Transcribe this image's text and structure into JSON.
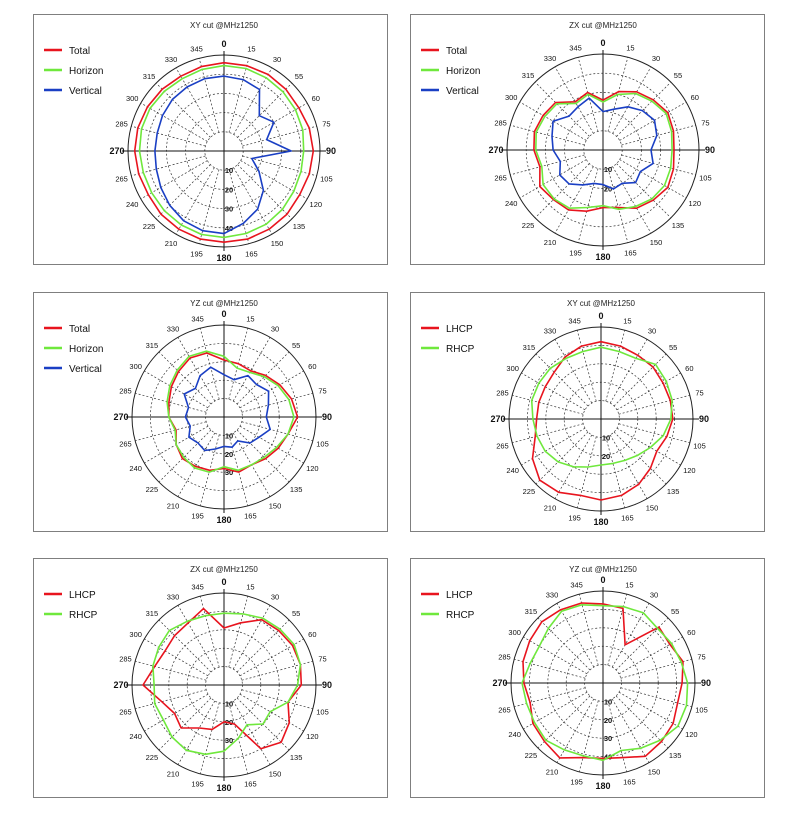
{
  "chart_data": [
    {
      "type": "polar",
      "title": "XY cut @MHz1250",
      "angle_ticks": [
        "0",
        "15",
        "30",
        "55",
        "60",
        "75",
        "90",
        "105",
        "120",
        "135",
        "150",
        "165",
        "180",
        "195",
        "210",
        "225",
        "240",
        "265",
        "270",
        "285",
        "300",
        "315",
        "330",
        "345"
      ],
      "radial_ticks": [
        "10",
        "20",
        "30",
        "40"
      ],
      "series": [
        {
          "name": "Total",
          "color": "#e8141e",
          "values": [
            0.92,
            0.92,
            0.92,
            0.91,
            0.9,
            0.92,
            0.93,
            0.92,
            0.91,
            0.93,
            0.94,
            0.95,
            0.95,
            0.95,
            0.94,
            0.93,
            0.91,
            0.92,
            0.93,
            0.93,
            0.92,
            0.91,
            0.9,
            0.91
          ]
        },
        {
          "name": "Horizon",
          "color": "#6fe83c",
          "values": [
            0.89,
            0.89,
            0.88,
            0.87,
            0.86,
            0.85,
            0.83,
            0.83,
            0.84,
            0.86,
            0.88,
            0.89,
            0.9,
            0.9,
            0.89,
            0.88,
            0.87,
            0.87,
            0.88,
            0.89,
            0.89,
            0.88,
            0.87,
            0.88
          ]
        },
        {
          "name": "Vertical",
          "color": "#1a3fc4",
          "values": [
            0.78,
            0.77,
            0.74,
            0.52,
            0.6,
            0.46,
            0.7,
            0.3,
            0.42,
            0.58,
            0.7,
            0.78,
            0.86,
            0.86,
            0.84,
            0.8,
            0.76,
            0.73,
            0.72,
            0.72,
            0.74,
            0.76,
            0.77,
            0.78
          ]
        }
      ]
    },
    {
      "type": "polar",
      "title": "ZX cut @MHz1250",
      "angle_ticks": [
        "0",
        "15",
        "30",
        "55",
        "60",
        "75",
        "90",
        "105",
        "120",
        "135",
        "150",
        "165",
        "180",
        "195",
        "210",
        "225",
        "240",
        "265",
        "270",
        "285",
        "300",
        "315",
        "330",
        "345"
      ],
      "radial_ticks": [
        "10",
        "20"
      ],
      "series": [
        {
          "name": "Total",
          "color": "#e8141e",
          "values": [
            0.52,
            0.63,
            0.7,
            0.74,
            0.78,
            0.76,
            0.74,
            0.76,
            0.78,
            0.74,
            0.7,
            0.62,
            0.6,
            0.66,
            0.72,
            0.73,
            0.76,
            0.68,
            0.72,
            0.74,
            0.72,
            0.7,
            0.58,
            0.62
          ]
        },
        {
          "name": "Horizon",
          "color": "#6fe83c",
          "values": [
            0.5,
            0.6,
            0.68,
            0.72,
            0.76,
            0.74,
            0.72,
            0.73,
            0.74,
            0.72,
            0.68,
            0.64,
            0.58,
            0.62,
            0.7,
            0.72,
            0.72,
            0.66,
            0.7,
            0.72,
            0.7,
            0.68,
            0.56,
            0.6
          ]
        },
        {
          "name": "Vertical",
          "color": "#1a3fc4",
          "values": [
            0.4,
            0.44,
            0.52,
            0.58,
            0.62,
            0.58,
            0.5,
            0.54,
            0.45,
            0.48,
            0.4,
            0.42,
            0.36,
            0.36,
            0.42,
            0.5,
            0.52,
            0.46,
            0.52,
            0.55,
            0.6,
            0.5,
            0.52,
            0.56
          ]
        }
      ]
    },
    {
      "type": "polar",
      "title": "YZ cut @MHz1250",
      "angle_ticks": [
        "0",
        "15",
        "30",
        "55",
        "60",
        "75",
        "90",
        "105",
        "120",
        "135",
        "150",
        "165",
        "180",
        "195",
        "210",
        "225",
        "240",
        "265",
        "270",
        "285",
        "300",
        "315",
        "330",
        "345"
      ],
      "radial_ticks": [
        "10",
        "20",
        "30"
      ],
      "series": [
        {
          "name": "Total",
          "color": "#e8141e",
          "values": [
            0.62,
            0.6,
            0.58,
            0.64,
            0.7,
            0.76,
            0.8,
            0.72,
            0.68,
            0.64,
            0.6,
            0.62,
            0.56,
            0.6,
            0.62,
            0.64,
            0.6,
            0.54,
            0.6,
            0.62,
            0.66,
            0.7,
            0.74,
            0.72
          ]
        },
        {
          "name": "Horizon",
          "color": "#6fe83c",
          "values": [
            0.66,
            0.55,
            0.56,
            0.62,
            0.68,
            0.73,
            0.76,
            0.72,
            0.66,
            0.62,
            0.6,
            0.6,
            0.54,
            0.62,
            0.64,
            0.62,
            0.6,
            0.55,
            0.6,
            0.64,
            0.68,
            0.72,
            0.76,
            0.74
          ]
        },
        {
          "name": "Vertical",
          "color": "#1a3fc4",
          "values": [
            0.46,
            0.42,
            0.52,
            0.5,
            0.56,
            0.5,
            0.46,
            0.52,
            0.44,
            0.4,
            0.3,
            0.34,
            0.32,
            0.36,
            0.42,
            0.4,
            0.44,
            0.38,
            0.42,
            0.4,
            0.5,
            0.44,
            0.52,
            0.56
          ]
        }
      ]
    },
    {
      "type": "polar",
      "title": "XY cut @MHz1250",
      "angle_ticks": [
        "0",
        "15",
        "30",
        "55",
        "60",
        "75",
        "90",
        "105",
        "120",
        "135",
        "150",
        "165",
        "180",
        "195",
        "210",
        "225",
        "240",
        "265",
        "270",
        "285",
        "300",
        "315",
        "330",
        "345"
      ],
      "radial_ticks": [
        "10",
        "20"
      ],
      "series": [
        {
          "name": "LHCP",
          "color": "#e8141e",
          "values": [
            0.84,
            0.82,
            0.8,
            0.8,
            0.78,
            0.78,
            0.78,
            0.74,
            0.7,
            0.76,
            0.82,
            0.86,
            0.88,
            0.86,
            0.92,
            0.94,
            0.86,
            0.74,
            0.7,
            0.7,
            0.7,
            0.72,
            0.78,
            0.82
          ]
        },
        {
          "name": "RHCP",
          "color": "#6fe83c",
          "values": [
            0.78,
            0.76,
            0.76,
            0.84,
            0.82,
            0.8,
            0.76,
            0.7,
            0.62,
            0.56,
            0.52,
            0.5,
            0.5,
            0.54,
            0.6,
            0.66,
            0.7,
            0.72,
            0.74,
            0.78,
            0.78,
            0.78,
            0.76,
            0.76
          ]
        }
      ]
    },
    {
      "type": "polar",
      "title": "ZX cut @MHz1250",
      "angle_ticks": [
        "0",
        "15",
        "30",
        "55",
        "60",
        "75",
        "90",
        "105",
        "120",
        "135",
        "150",
        "165",
        "180",
        "195",
        "210",
        "225",
        "240",
        "265",
        "270",
        "285",
        "300",
        "315",
        "330",
        "345"
      ],
      "radial_ticks": [
        "10",
        "20",
        "30"
      ],
      "series": [
        {
          "name": "LHCP",
          "color": "#e8141e",
          "values": [
            0.62,
            0.7,
            0.82,
            0.84,
            0.86,
            0.86,
            0.84,
            0.72,
            0.82,
            0.88,
            0.8,
            0.44,
            0.4,
            0.5,
            0.54,
            0.66,
            0.62,
            0.7,
            0.88,
            0.78,
            0.74,
            0.76,
            0.78,
            0.86
          ]
        },
        {
          "name": "RHCP",
          "color": "#6fe83c",
          "values": [
            0.78,
            0.8,
            0.84,
            0.86,
            0.88,
            0.86,
            0.8,
            0.72,
            0.58,
            0.6,
            0.5,
            0.6,
            0.72,
            0.78,
            0.82,
            0.8,
            0.76,
            0.78,
            0.76,
            0.8,
            0.82,
            0.84,
            0.8,
            0.78
          ]
        }
      ]
    },
    {
      "type": "polar",
      "title": "YZ cut @MHz1250",
      "angle_ticks": [
        "0",
        "15",
        "30",
        "55",
        "60",
        "75",
        "90",
        "105",
        "120",
        "135",
        "150",
        "165",
        "180",
        "195",
        "210",
        "225",
        "240",
        "265",
        "270",
        "285",
        "300",
        "315",
        "330",
        "345"
      ],
      "radial_ticks": [
        "10",
        "20",
        "30",
        "40"
      ],
      "series": [
        {
          "name": "LHCP",
          "color": "#e8141e",
          "values": [
            0.86,
            0.84,
            0.48,
            0.86,
            0.84,
            0.9,
            0.86,
            0.84,
            0.88,
            0.9,
            0.92,
            0.84,
            0.82,
            0.84,
            0.94,
            0.9,
            0.88,
            0.82,
            0.86,
            0.9,
            0.92,
            0.94,
            0.92,
            0.9
          ]
        },
        {
          "name": "RHCP",
          "color": "#6fe83c",
          "values": [
            0.84,
            0.86,
            0.88,
            0.84,
            0.86,
            0.88,
            0.92,
            0.94,
            0.94,
            0.88,
            0.82,
            0.76,
            0.84,
            0.82,
            0.84,
            0.88,
            0.86,
            0.86,
            0.88,
            0.82,
            0.8,
            0.84,
            0.9,
            0.88
          ]
        }
      ]
    }
  ]
}
